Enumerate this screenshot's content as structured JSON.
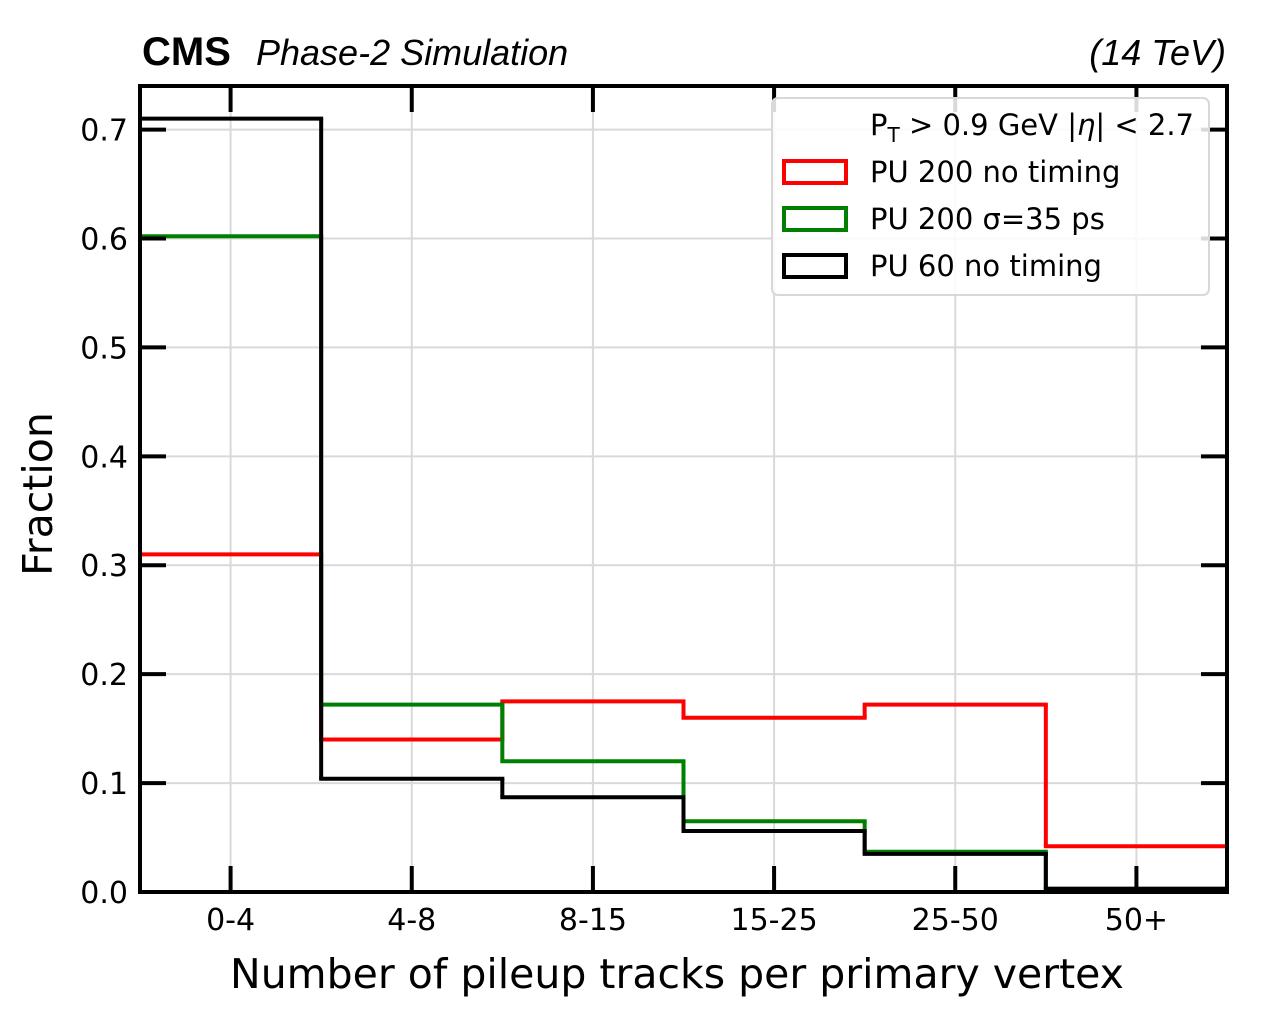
{
  "chart_data": {
    "type": "step-histogram",
    "experiment": "CMS",
    "status": "Phase-2 Simulation",
    "energy": "(14 TeV)",
    "xlabel": "Number of pileup tracks per primary vertex",
    "ylabel": "Fraction",
    "categories": [
      "0-4",
      "4-8",
      "8-15",
      "15-25",
      "25-50",
      "50+"
    ],
    "yticks": [
      "0.0",
      "0.1",
      "0.2",
      "0.3",
      "0.4",
      "0.5",
      "0.6",
      "0.7"
    ],
    "ylim": [
      0,
      0.74
    ],
    "grid": true,
    "legend_title": "P_T > 0.9 GeV |η| < 2.7",
    "legend_position": "top-right",
    "series": [
      {
        "name": "PU 200 no timing",
        "color": "#ff0000",
        "values": [
          0.31,
          0.14,
          0.175,
          0.16,
          0.172,
          0.042
        ]
      },
      {
        "name": "PU 200 σ=35 ps",
        "color": "#008000",
        "values": [
          0.602,
          0.172,
          0.12,
          0.065,
          0.037,
          0.003
        ]
      },
      {
        "name": "PU 60 no timing",
        "color": "#000000",
        "values": [
          0.71,
          0.104,
          0.087,
          0.056,
          0.035,
          0.003
        ]
      }
    ]
  }
}
